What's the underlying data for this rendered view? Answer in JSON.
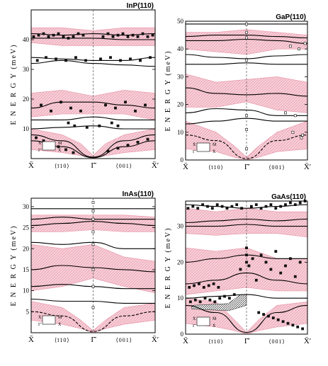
{
  "chart_data": [
    {
      "type": "line",
      "title": "InP(110)",
      "ylabel": "E N E R G Y  (meV)",
      "ylim": [
        0,
        50
      ],
      "yticks": [
        10,
        20,
        30,
        40
      ],
      "x_tick_labels": [
        "X̄",
        "⟨ī10⟩",
        "Γ̄",
        "⟨001⟩",
        "X̄′"
      ],
      "legend_labels": [
        "X̄",
        "M̄",
        "Γ̄",
        "X̄"
      ],
      "bands": [
        {
          "x": [
            0,
            0.25,
            0.5,
            0.75,
            1.0
          ],
          "lower": [
            39,
            38,
            38,
            38,
            38
          ],
          "upper": [
            44,
            44,
            43,
            44,
            44
          ]
        },
        {
          "x": [
            0,
            0.25,
            0.5,
            0.75,
            1.0
          ],
          "lower": [
            14,
            15,
            15,
            15,
            13
          ],
          "upper": [
            22,
            23,
            21,
            23,
            22
          ]
        },
        {
          "x": [
            0,
            0.25,
            0.4,
            0.5,
            0.6,
            0.75,
            1.0
          ],
          "lower": [
            3,
            2,
            1,
            0,
            1,
            2,
            3
          ],
          "upper": [
            10,
            8,
            5,
            1,
            5,
            8,
            10
          ]
        }
      ],
      "series": [
        {
          "x": [
            0,
            0.25,
            0.5,
            0.75,
            1.0
          ],
          "y": [
            42,
            41.5,
            42,
            41.5,
            42
          ]
        },
        {
          "x": [
            0,
            0.25,
            0.5,
            0.75,
            1.0
          ],
          "y": [
            40.5,
            40.5,
            40.5,
            40,
            40
          ]
        },
        {
          "x": [
            0,
            0.25,
            0.5,
            0.75,
            1.0
          ],
          "y": [
            34,
            33.5,
            33,
            33,
            34
          ]
        },
        {
          "x": [
            0,
            0.25,
            0.5,
            0.75,
            1.0
          ],
          "y": [
            32,
            33,
            32,
            31.5,
            31
          ]
        },
        {
          "x": [
            0,
            0.25,
            0.5,
            0.75,
            1.0
          ],
          "y": [
            17,
            19,
            19,
            18,
            17
          ]
        },
        {
          "x": [
            0,
            0.25,
            0.5,
            0.75,
            1.0
          ],
          "y": [
            13,
            13,
            14,
            13,
            13
          ]
        },
        {
          "x": [
            0,
            0.25,
            0.5,
            0.75,
            1.0
          ],
          "y": [
            10,
            10.5,
            11,
            10,
            10
          ]
        },
        {
          "x": [
            0,
            0.25,
            0.5,
            0.75,
            1.0
          ],
          "y": [
            8,
            6,
            0.5,
            6,
            8
          ]
        },
        {
          "x": [
            0,
            0.25,
            0.5,
            0.75,
            1.0
          ],
          "y": [
            6,
            4,
            0.3,
            4,
            6
          ]
        }
      ],
      "points": {
        "x": [
          0.02,
          0.06,
          0.1,
          0.14,
          0.18,
          0.22,
          0.26,
          0.3,
          0.34,
          0.38,
          0.42,
          0.58,
          0.62,
          0.66,
          0.7,
          0.74,
          0.78,
          0.82,
          0.86,
          0.9,
          0.94,
          0.98,
          0.05,
          0.12,
          0.2,
          0.28,
          0.36,
          0.44,
          0.56,
          0.64,
          0.72,
          0.8,
          0.88,
          0.96,
          0.08,
          0.16,
          0.24,
          0.32,
          0.4,
          0.6,
          0.68,
          0.76,
          0.84,
          0.92,
          0.3,
          0.35,
          0.45,
          0.55,
          0.65,
          0.7,
          0.04,
          0.1,
          0.16,
          0.22,
          0.28,
          0.34,
          0.62,
          0.7,
          0.78,
          0.86,
          0.94
        ],
        "y": [
          41,
          41.5,
          42,
          41,
          41.5,
          42,
          41,
          40.5,
          41,
          42,
          41.5,
          41,
          42,
          41,
          41.5,
          42,
          41,
          41.5,
          41,
          42,
          41,
          41.5,
          33,
          34,
          33.5,
          33,
          34,
          33,
          33.5,
          34,
          33,
          33.5,
          33,
          34,
          18,
          16,
          19,
          17,
          16,
          18,
          17,
          19,
          16,
          18,
          12,
          11,
          10.5,
          11,
          12,
          11,
          7,
          6,
          5,
          4,
          3,
          2,
          2.5,
          3.5,
          4.5,
          5.5,
          6.5
        ]
      }
    },
    {
      "type": "line",
      "title": "GaP(110)",
      "ylabel": "E N E R G Y  (meV)",
      "ylim": [
        0,
        50
      ],
      "yticks": [
        0,
        10,
        20,
        30,
        40,
        50
      ],
      "x_tick_labels": [
        "X̄",
        "⟨ī10⟩",
        "Γ̄",
        "⟨001⟩",
        "X̄′"
      ],
      "legend_labels": [
        "X̄",
        "M̄",
        "Γ̄",
        "X̄"
      ],
      "bands": [
        {
          "x": [
            0,
            0.25,
            0.5,
            0.75,
            1.0
          ],
          "lower": [
            40,
            39,
            38,
            40,
            40
          ],
          "upper": [
            46,
            46,
            47,
            46,
            45
          ]
        },
        {
          "x": [
            0,
            0.25,
            0.5,
            0.75,
            1.0
          ],
          "lower": [
            19,
            19,
            21,
            18,
            17
          ],
          "upper": [
            31,
            28,
            29,
            30,
            28
          ]
        },
        {
          "x": [
            0,
            0.25,
            0.4,
            0.5,
            0.6,
            0.75,
            1.0
          ],
          "lower": [
            4,
            3,
            1,
            0,
            1,
            3,
            4
          ],
          "upper": [
            14,
            10,
            5,
            1,
            5,
            10,
            14
          ]
        }
      ],
      "series": [
        {
          "x": [
            0,
            0.25,
            0.5,
            0.75,
            1.0
          ],
          "y": [
            49,
            49,
            49,
            49,
            49
          ]
        },
        {
          "x": [
            0,
            0.25,
            0.5,
            0.75,
            1.0
          ],
          "y": [
            44.5,
            45,
            45,
            44.5,
            44
          ]
        },
        {
          "x": [
            0,
            0.25,
            0.5,
            0.75,
            1.0
          ],
          "y": [
            43,
            43,
            43.5,
            43,
            42
          ]
        },
        {
          "x": [
            0,
            0.25,
            0.5,
            0.75,
            1.0
          ],
          "y": [
            38,
            37,
            36.5,
            37.5,
            38
          ]
        },
        {
          "x": [
            0,
            0.25,
            0.5,
            0.75,
            1.0
          ],
          "y": [
            34.5,
            34.5,
            35,
            34.5,
            34.5
          ]
        },
        {
          "x": [
            0,
            0.25,
            0.5,
            0.75,
            1.0
          ],
          "y": [
            26,
            24,
            23.5,
            24,
            23
          ]
        },
        {
          "x": [
            0,
            0.25,
            0.5,
            0.75,
            1.0
          ],
          "y": [
            17,
            18.5,
            18,
            16,
            16
          ]
        },
        {
          "x": [
            0,
            0.25,
            0.5,
            0.75,
            1.0
          ],
          "y": [
            13,
            14,
            15,
            14,
            14
          ]
        },
        {
          "x": [
            0,
            0.25,
            0.5,
            0.75,
            1.0
          ],
          "y": [
            9,
            7,
            0.5,
            7,
            9
          ]
        }
      ],
      "points": {
        "x": [
          0.5,
          0.5,
          0.5,
          0.5,
          0.5,
          0.5,
          0.5,
          0.86,
          0.93,
          0.98,
          0.82,
          0.9,
          0.96,
          0.88,
          0.95
        ],
        "y": [
          49,
          46,
          44,
          36,
          16,
          11,
          4,
          41,
          40,
          42,
          17,
          16,
          9,
          10,
          8
        ]
      }
    },
    {
      "type": "line",
      "title": "InAs(110)",
      "ylabel": "E N E R G Y  (meV)",
      "ylim": [
        0,
        32
      ],
      "yticks": [
        5,
        10,
        15,
        20,
        25,
        30
      ],
      "x_tick_labels": [
        "X̄",
        "⟨ī10⟩",
        "Γ̄",
        "⟨001⟩",
        "X̄′"
      ],
      "legend_labels": [
        "X̄",
        "M̄",
        "Γ̄",
        "X̄"
      ],
      "bands": [
        {
          "x": [
            0,
            0.25,
            0.5,
            0.75,
            1.0
          ],
          "lower": [
            24,
            24,
            24.5,
            24,
            24
          ],
          "upper": [
            28,
            28,
            28,
            28,
            27.5
          ]
        },
        {
          "x": [
            0,
            0.25,
            0.5,
            0.75,
            1.0
          ],
          "lower": [
            10,
            11,
            13,
            11,
            9.5
          ],
          "upper": [
            21,
            20,
            21,
            18,
            17
          ]
        },
        {
          "x": [
            0,
            0.25,
            0.4,
            0.5,
            0.6,
            0.75,
            1.0
          ],
          "lower": [
            3,
            2,
            1,
            0,
            1,
            2,
            3
          ],
          "upper": [
            7.5,
            6,
            3,
            0.5,
            3,
            6,
            7
          ]
        }
      ],
      "series": [
        {
          "x": [
            0,
            0.25,
            0.5,
            0.75,
            1.0
          ],
          "y": [
            29.5,
            29.5,
            29.5,
            29.5,
            29.5
          ]
        },
        {
          "x": [
            0,
            0.25,
            0.5,
            0.75,
            1.0
          ],
          "y": [
            27,
            27.5,
            27,
            27,
            27
          ]
        },
        {
          "x": [
            0,
            0.25,
            0.5,
            0.75,
            1.0
          ],
          "y": [
            25.5,
            26,
            26.5,
            26,
            25.5
          ]
        },
        {
          "x": [
            0,
            0.25,
            0.5,
            0.75,
            1.0
          ],
          "y": [
            21.5,
            21,
            21.5,
            20,
            20
          ]
        },
        {
          "x": [
            0,
            0.25,
            0.5,
            0.75,
            1.0
          ],
          "y": [
            15,
            16,
            15.5,
            15,
            14.5
          ]
        },
        {
          "x": [
            0,
            0.25,
            0.5,
            0.75,
            1.0
          ],
          "y": [
            11,
            11.5,
            11,
            10.5,
            10.5
          ]
        },
        {
          "x": [
            0,
            0.25,
            0.5,
            0.75,
            1.0
          ],
          "y": [
            8,
            7.5,
            7.5,
            7,
            7
          ]
        },
        {
          "x": [
            0,
            0.25,
            0.5,
            0.75,
            1.0
          ],
          "y": [
            5,
            4,
            0.3,
            4,
            5
          ]
        }
      ],
      "points": {
        "x": [
          0.5,
          0.5,
          0.5,
          0.5,
          0.5,
          0.5,
          0.5,
          0.5
        ],
        "y": [
          31,
          29,
          27,
          24,
          21,
          15,
          11,
          6
        ]
      }
    },
    {
      "type": "line",
      "title": "GaAs(110)",
      "ylabel": "E N E R G Y  (meV)",
      "ylim": [
        0,
        37
      ],
      "yticks": [
        0,
        10,
        20,
        30
      ],
      "x_tick_labels": [
        "X̄",
        "⟨ī10⟩",
        "Γ̄",
        "⟨001⟩",
        "X̄′"
      ],
      "legend_labels": [
        "X̄",
        "M̄",
        "Γ̄",
        "X̄"
      ],
      "bands": [
        {
          "x": [
            0,
            0.25,
            0.5,
            0.75,
            1.0
          ],
          "lower": [
            28,
            27.5,
            28,
            28,
            27
          ],
          "upper": [
            35,
            34,
            35,
            34,
            34
          ]
        },
        {
          "x": [
            0,
            0.25,
            0.5,
            0.75,
            1.0
          ],
          "lower": [
            11,
            12,
            13,
            12,
            12
          ],
          "upper": [
            24,
            23,
            24,
            21,
            21
          ]
        },
        {
          "x": [
            0,
            0.25,
            0.4,
            0.5,
            0.6,
            0.75,
            1.0
          ],
          "lower": [
            3,
            2,
            1,
            0,
            1,
            2,
            3
          ],
          "upper": [
            10,
            9,
            4,
            0.5,
            4,
            8,
            9
          ]
        }
      ],
      "series": [
        {
          "x": [
            0,
            0.25,
            0.5,
            0.75,
            1.0
          ],
          "y": [
            36,
            35.5,
            35,
            35.5,
            36
          ]
        },
        {
          "x": [
            0,
            0.25,
            0.5,
            0.75,
            1.0
          ],
          "y": [
            31,
            31.5,
            32,
            31.5,
            32
          ]
        },
        {
          "x": [
            0,
            0.25,
            0.5,
            0.75,
            1.0
          ],
          "y": [
            30,
            30,
            30.5,
            30,
            30
          ]
        },
        {
          "x": [
            0,
            0.25,
            0.5,
            0.75,
            1.0
          ],
          "y": [
            20,
            21,
            22,
            21,
            21
          ]
        },
        {
          "x": [
            0,
            0.25,
            0.5,
            0.75,
            1.0
          ],
          "y": [
            14,
            15,
            17,
            15,
            14
          ]
        },
        {
          "x": [
            0,
            0.25,
            0.5,
            0.75,
            1.0
          ],
          "y": [
            10,
            10.5,
            11,
            10,
            10
          ]
        },
        {
          "x": [
            0,
            0.25,
            0.5,
            0.75,
            1.0
          ],
          "y": [
            8,
            6,
            0.5,
            6,
            8
          ]
        }
      ],
      "points": {
        "x": [
          0.02,
          0.06,
          0.1,
          0.14,
          0.18,
          0.22,
          0.26,
          0.3,
          0.34,
          0.38,
          0.42,
          0.46,
          0.54,
          0.58,
          0.62,
          0.66,
          0.7,
          0.74,
          0.78,
          0.82,
          0.86,
          0.9,
          0.94,
          0.98,
          0.03,
          0.07,
          0.11,
          0.15,
          0.19,
          0.23,
          0.27,
          0.45,
          0.5,
          0.5,
          0.5,
          0.52,
          0.55,
          0.58,
          0.62,
          0.66,
          0.7,
          0.74,
          0.78,
          0.82,
          0.86,
          0.9,
          0.94,
          0.04,
          0.08,
          0.12,
          0.16,
          0.2,
          0.24,
          0.28,
          0.32,
          0.36,
          0.4,
          0.6,
          0.64,
          0.68,
          0.72,
          0.76,
          0.8,
          0.84,
          0.88,
          0.92,
          0.96
        ],
        "y": [
          35,
          35.5,
          35,
          36,
          35.5,
          35,
          36,
          35.5,
          35,
          35.5,
          36,
          35,
          35.5,
          36,
          35,
          35.5,
          36,
          35,
          35.5,
          36,
          36.5,
          36,
          36.5,
          37,
          13,
          13.5,
          14,
          13,
          13.5,
          14,
          13,
          18,
          24,
          22,
          20,
          19,
          21,
          15,
          22,
          20,
          18,
          23,
          17,
          19,
          21,
          16,
          20,
          9,
          9.5,
          9,
          10,
          9.5,
          9,
          10,
          10.5,
          10,
          11,
          6,
          5.5,
          5,
          4.5,
          4,
          3.5,
          3,
          2.5,
          2,
          1.5
        ]
      }
    }
  ]
}
